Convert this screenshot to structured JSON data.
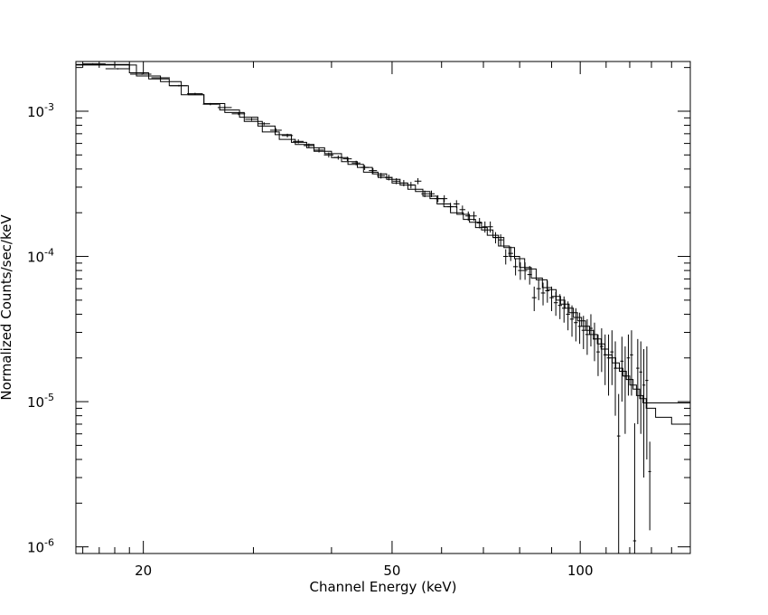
{
  "chart_data": [
    {
      "type": "line",
      "title": "",
      "xlabel": "Channel Energy (keV)",
      "ylabel": "Normalized Counts/sec/keV",
      "x_scale": "log",
      "y_scale": "log",
      "xlim": [
        15.6,
        150
      ],
      "ylim": [
        9e-07,
        0.0022
      ],
      "x_ticks": [
        {
          "value": 20,
          "label": "20"
        },
        {
          "value": 50,
          "label": "50"
        },
        {
          "value": 100,
          "label": "100"
        }
      ],
      "y_ticks": [
        {
          "value": 0.001,
          "base": "10",
          "exp": "-3"
        },
        {
          "value": 0.0001,
          "base": "10",
          "exp": "-4"
        },
        {
          "value": 1e-05,
          "base": "10",
          "exp": "-5"
        },
        {
          "value": 1e-06,
          "base": "10",
          "exp": "-6"
        }
      ],
      "grid": false,
      "series": [
        {
          "role": "data",
          "points": [
            [
              16.6,
              0.00212,
              2e-05
            ],
            [
              18.2,
              0.00196,
              2e-05
            ],
            [
              19.9,
              0.0018,
              2e-05
            ],
            [
              21.3,
              0.0017,
              2e-05
            ],
            [
              22.8,
              0.0015,
              2e-05
            ],
            [
              24.2,
              0.00132,
              2e-05
            ],
            [
              25.6,
              0.00112,
              2e-05
            ],
            [
              27.0,
              0.00106,
              2e-05
            ],
            [
              28.4,
              0.00096,
              2e-05
            ],
            [
              29.8,
              0.00088,
              2e-05
            ],
            [
              31.2,
              0.00082,
              2e-05
            ],
            [
              32.6,
              0.00074,
              2e-05
            ],
            [
              34.0,
              0.00068,
              2e-05
            ],
            [
              35.4,
              0.00062,
              2e-05
            ],
            [
              36.8,
              0.00058,
              2e-05
            ],
            [
              38.2,
              0.00054,
              2e-05
            ],
            [
              39.6,
              0.0005,
              2e-05
            ],
            [
              41.0,
              0.00048,
              1.6e-05
            ],
            [
              42.4,
              0.00047,
              1.6e-05
            ],
            [
              43.8,
              0.00044,
              1.6e-05
            ],
            [
              45.2,
              0.00041,
              1.6e-05
            ],
            [
              46.6,
              0.00039,
              1.6e-05
            ],
            [
              48.0,
              0.00036,
              1.6e-05
            ],
            [
              49.4,
              0.00035,
              1.6e-05
            ],
            [
              50.8,
              0.00033,
              1.6e-05
            ],
            [
              52.2,
              0.00032,
              1.6e-05
            ],
            [
              53.6,
              0.00031,
              1.6e-05
            ],
            [
              55.0,
              0.00033,
              1.6e-05
            ],
            [
              56.4,
              0.00027,
              1.4e-05
            ],
            [
              57.8,
              0.00027,
              1.4e-05
            ],
            [
              59.2,
              0.00025,
              1.4e-05
            ],
            [
              60.6,
              0.00025,
              1.4e-05
            ],
            [
              62.0,
              0.00022,
              1.4e-05
            ],
            [
              63.4,
              0.00023,
              1.4e-05
            ],
            [
              64.8,
              0.00021,
              1.4e-05
            ],
            [
              66.2,
              0.00019,
              1.4e-05
            ],
            [
              67.6,
              0.00019,
              1.4e-05
            ],
            [
              69.0,
              0.00017,
              1.4e-05
            ],
            [
              70.4,
              0.00016,
              1.4e-05
            ],
            [
              71.8,
              0.00016,
              1.4e-05
            ],
            [
              73.2,
              0.000135,
              1.2e-05
            ],
            [
              74.6,
              0.00013,
              1.2e-05
            ],
            [
              76.0,
              0.0001,
              1.2e-05
            ],
            [
              77.4,
              0.000105,
              1.2e-05
            ],
            [
              78.8,
              8.5e-05,
              1.1e-05
            ],
            [
              80.2,
              8e-05,
              1.1e-05
            ],
            [
              81.6,
              8e-05,
              1.1e-05
            ],
            [
              83.0,
              7.5e-05,
              1.1e-05
            ],
            [
              84.4,
              5.2e-05,
              1e-05
            ],
            [
              85.8,
              6e-05,
              1e-05
            ],
            [
              87.2,
              5.6e-05,
              1e-05
            ],
            [
              88.6,
              5.8e-05,
              1e-05
            ],
            [
              90.0,
              5.2e-05,
              1e-05
            ],
            [
              91.4,
              4.8e-05,
              9e-06
            ],
            [
              92.8,
              4.6e-05,
              9e-06
            ],
            [
              94.2,
              4.4e-05,
              9e-06
            ],
            [
              95.6,
              4e-05,
              9e-06
            ],
            [
              97.0,
              3.7e-05,
              9e-06
            ],
            [
              98.4,
              3.5e-05,
              9e-06
            ],
            [
              99.8,
              3.3e-05,
              8e-06
            ],
            [
              101.2,
              3.1e-05,
              8e-06
            ],
            [
              102.6,
              2.9e-05,
              8e-06
            ],
            [
              104.0,
              3.2e-05,
              8e-06
            ],
            [
              105.4,
              2.7e-05,
              8e-06
            ],
            [
              106.8,
              2.2e-05,
              7e-06
            ],
            [
              108.2,
              2.4e-05,
              8e-06
            ],
            [
              109.6,
              2.1e-05,
              8e-06
            ],
            [
              111.0,
              2e-05,
              9e-06
            ],
            [
              112.4,
              2.2e-05,
              9e-06
            ],
            [
              113.8,
              1.7e-05,
              9e-06
            ],
            [
              115.2,
              5.8e-06,
              5.5e-06
            ],
            [
              116.6,
              1.9e-05,
              9e-06
            ],
            [
              118.0,
              1.5e-05,
              9e-06
            ],
            [
              119.4,
              2e-05,
              9e-06
            ],
            [
              120.8,
              2.1e-05,
              1e-05
            ],
            [
              122.2,
              1.1e-06,
              6e-06
            ],
            [
              123.6,
              1.7e-05,
              1e-05
            ],
            [
              125.0,
              1.6e-05,
              1e-05
            ],
            [
              126.4,
              1.3e-05,
              1e-05
            ],
            [
              127.8,
              1.4e-05,
              1e-05
            ],
            [
              129.2,
              3.3e-06,
              2e-06
            ]
          ]
        },
        {
          "role": "model-thick",
          "steps": [
            [
              15.6,
              0.0021
            ],
            [
              19.0,
              0.00184
            ],
            [
              20.4,
              0.00167
            ],
            [
              22.0,
              0.0015
            ],
            [
              23.6,
              0.0013
            ],
            [
              25.0,
              0.00113
            ],
            [
              27.0,
              0.00098
            ],
            [
              29.0,
              0.00085
            ],
            [
              31.0,
              0.00072
            ],
            [
              33.0,
              0.00064
            ],
            [
              35.0,
              0.00059
            ],
            [
              37.5,
              0.00053
            ],
            [
              40.0,
              0.00048
            ],
            [
              42.5,
              0.00043
            ],
            [
              45.0,
              0.00038
            ],
            [
              47.5,
              0.00035
            ],
            [
              50.0,
              0.00032
            ],
            [
              53.0,
              0.00029
            ],
            [
              56.0,
              0.00026
            ],
            [
              59.0,
              0.00023
            ],
            [
              62.0,
              0.0002
            ],
            [
              65.0,
              0.00018
            ],
            [
              68.0,
              0.000158
            ],
            [
              71.0,
              0.00014
            ],
            [
              74.0,
              0.000118
            ],
            [
              77.0,
              0.0001
            ],
            [
              80.0,
              8.4e-05
            ],
            [
              83.5,
              7.1e-05
            ],
            [
              87.0,
              6.1e-05
            ],
            [
              90.0,
              5.3e-05
            ],
            [
              93.0,
              4.7e-05
            ],
            [
              96.0,
              4.1e-05
            ],
            [
              99.0,
              3.6e-05
            ],
            [
              102.0,
              3.1e-05
            ],
            [
              105.0,
              2.7e-05
            ],
            [
              108.0,
              2.3e-05
            ],
            [
              111.0,
              2e-05
            ],
            [
              114.0,
              1.7e-05
            ],
            [
              117.0,
              1.5e-05
            ],
            [
              120.0,
              1.3e-05
            ],
            [
              123.0,
              1.1e-05
            ],
            [
              126.0,
              9.8e-06
            ],
            [
              130.0,
              9.8e-06
            ],
            [
              137.0,
              9.8e-06
            ],
            [
              150.0,
              9.8e-06
            ]
          ]
        },
        {
          "role": "model-thin",
          "steps": [
            [
              15.6,
              0.00208
            ],
            [
              19.5,
              0.00175
            ],
            [
              21.3,
              0.0016
            ],
            [
              23.0,
              0.0013
            ],
            [
              25.0,
              0.00112
            ],
            [
              26.5,
              0.00102
            ],
            [
              28.5,
              0.00091
            ],
            [
              30.5,
              0.00079
            ],
            [
              32.5,
              0.00069
            ],
            [
              34.5,
              0.00061
            ],
            [
              36.5,
              0.00056
            ],
            [
              39.0,
              0.00051
            ],
            [
              41.5,
              0.00045
            ],
            [
              44.0,
              0.00041
            ],
            [
              46.5,
              0.00037
            ],
            [
              49.0,
              0.00034
            ],
            [
              51.5,
              0.00031
            ],
            [
              54.5,
              0.00028
            ],
            [
              57.5,
              0.00025
            ],
            [
              60.5,
              0.00022
            ],
            [
              63.5,
              0.000195
            ],
            [
              66.5,
              0.000172
            ],
            [
              69.5,
              0.000152
            ],
            [
              72.5,
              0.000135
            ],
            [
              75.5,
              0.000115
            ],
            [
              78.5,
              9.65e-05
            ],
            [
              81.5,
              8.2e-05
            ],
            [
              85.0,
              6.9e-05
            ],
            [
              88.5,
              5.9e-05
            ],
            [
              91.5,
              5e-05
            ],
            [
              94.5,
              4.4e-05
            ],
            [
              97.5,
              3.8e-05
            ],
            [
              100.5,
              3.3e-05
            ],
            [
              103.5,
              2.9e-05
            ],
            [
              106.5,
              2.5e-05
            ],
            [
              109.5,
              2.1e-05
            ],
            [
              112.5,
              1.85e-05
            ],
            [
              115.5,
              1.62e-05
            ],
            [
              118.5,
              1.42e-05
            ],
            [
              121.5,
              1.22e-05
            ],
            [
              124.5,
              1.05e-05
            ],
            [
              127.5,
              9e-06
            ],
            [
              132.0,
              7.8e-06
            ],
            [
              140.0,
              7e-06
            ],
            [
              150.0,
              7e-06
            ]
          ]
        }
      ]
    }
  ]
}
